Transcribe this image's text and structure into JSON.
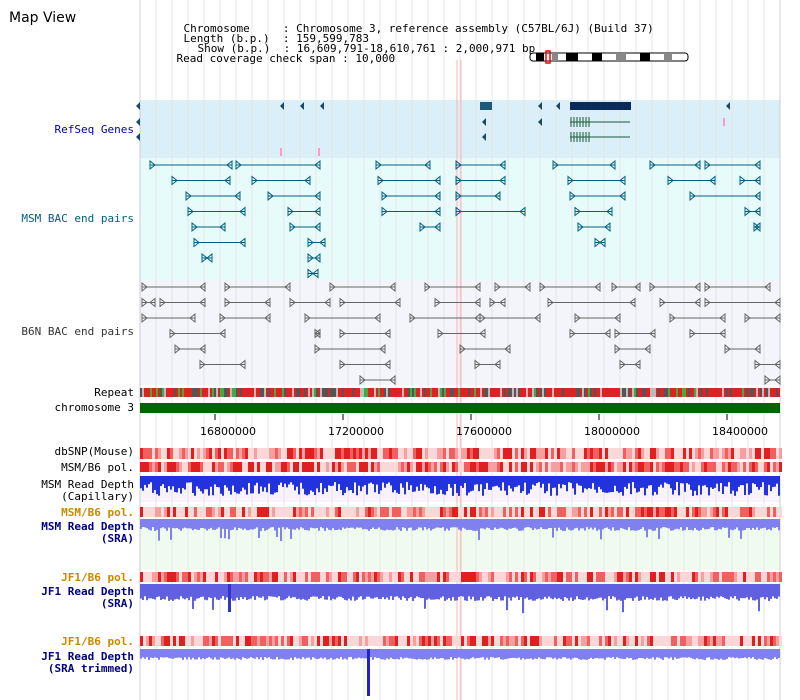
{
  "app": {
    "title": "Map View"
  },
  "info": {
    "chromosome_label": "Chromosome",
    "chromosome_value": "Chromosome 3, reference assembly (C57BL/6J) (Build 37)",
    "length_label": "Length (b.p.)",
    "length_value": "159,599,783",
    "show_label": "Show (b.p.)",
    "show_value": "16,609,791-18,610,761 : 2,000,971 bp",
    "coverage_label": "Read coverage check span",
    "coverage_value": "10,000"
  },
  "tracks": {
    "refseq": "RefSeq Genes",
    "msm_bac": "MSM BAC end pairs",
    "b6n_bac": "B6N BAC end pairs",
    "repeat": "Repeat",
    "chromosome": "chromosome 3",
    "dbsnp": "dbSNP(Mouse)",
    "msm_b6_pol_1": "MSM/B6 pol.",
    "msm_depth_cap_1": "MSM Read Depth",
    "msm_depth_cap_2": "(Capillary)",
    "msm_b6_pol_2": "MSM/B6 pol.",
    "msm_depth_sra_1": "MSM Read Depth",
    "msm_depth_sra_2": "(SRA)",
    "jf1_b6_pol_1": "JF1/B6 pol.",
    "jf1_depth_sra_1": "JF1 Read Depth",
    "jf1_depth_sra_2": "(SRA)",
    "jf1_b6_pol_2": "JF1/B6 pol.",
    "jf1_depth_trim_1": "JF1 Read Depth",
    "jf1_depth_trim_2": "(SRA trimmed)"
  },
  "axis": {
    "ticks": [
      "16800000",
      "17200000",
      "17600000",
      "18000000",
      "18400000"
    ]
  },
  "colors": {
    "refseq_bg": "#dbeff9",
    "msm_bg": "#e8fbfb",
    "b6n_bg": "#f3f5fb",
    "chromosome": "#006400",
    "refseq_label": "#0000aa",
    "msm_label": "#006080",
    "b6n_label": "#333333",
    "pol_label": "#cc8800",
    "depth_label": "#000080"
  }
}
